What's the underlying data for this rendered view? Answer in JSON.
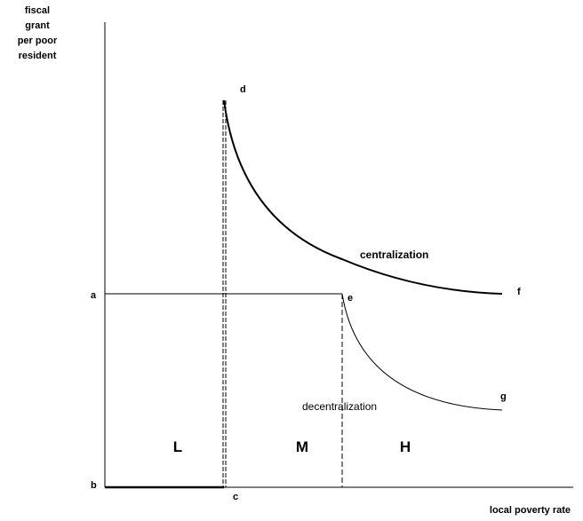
{
  "y_axis_label": [
    "fiscal",
    "grant",
    "per poor",
    "resident"
  ],
  "x_axis_label": "local poverty rate",
  "points": {
    "a": "a",
    "b": "b",
    "c": "c",
    "d": "d",
    "e": "e",
    "f": "f",
    "g": "g"
  },
  "regions": [
    "L",
    "M",
    "H"
  ],
  "curves": {
    "upper": "centralization",
    "lower": "decentralization"
  }
}
